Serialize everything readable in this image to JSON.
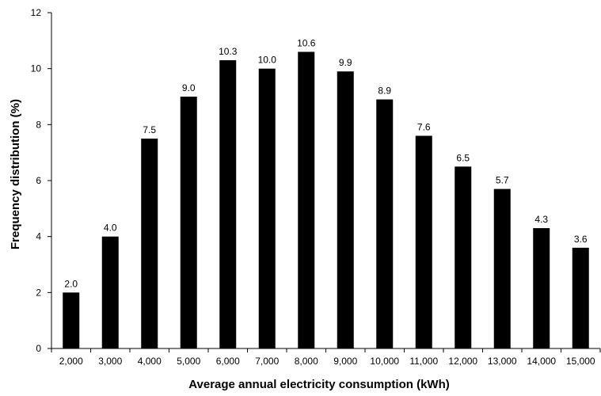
{
  "chart_data": {
    "type": "bar",
    "categories": [
      "2,000",
      "3,000",
      "4,000",
      "5,000",
      "6,000",
      "7,000",
      "8,000",
      "9,000",
      "10,000",
      "11,000",
      "12,000",
      "13,000",
      "14,000",
      "15,000"
    ],
    "values": [
      2.0,
      4.0,
      7.5,
      9.0,
      10.3,
      10.0,
      10.6,
      9.9,
      8.9,
      7.6,
      6.5,
      5.7,
      4.3,
      3.6
    ],
    "value_labels": [
      "2.0",
      "4.0",
      "7.5",
      "9.0",
      "10.3",
      "10.0",
      "10.6",
      "9.9",
      "8.9",
      "7.6",
      "6.5",
      "5.7",
      "4.3",
      "3.6"
    ],
    "xlabel": "Average annual electricity consumption (kWh)",
    "ylabel": "Frequency distribution (%)",
    "ylim": [
      0,
      12
    ],
    "yticks": [
      0,
      2,
      4,
      6,
      8,
      10,
      12
    ],
    "ytick_labels": [
      "0",
      "2",
      "4",
      "6",
      "8",
      "10",
      "12"
    ],
    "grid": false,
    "bar_color": "#000000"
  }
}
